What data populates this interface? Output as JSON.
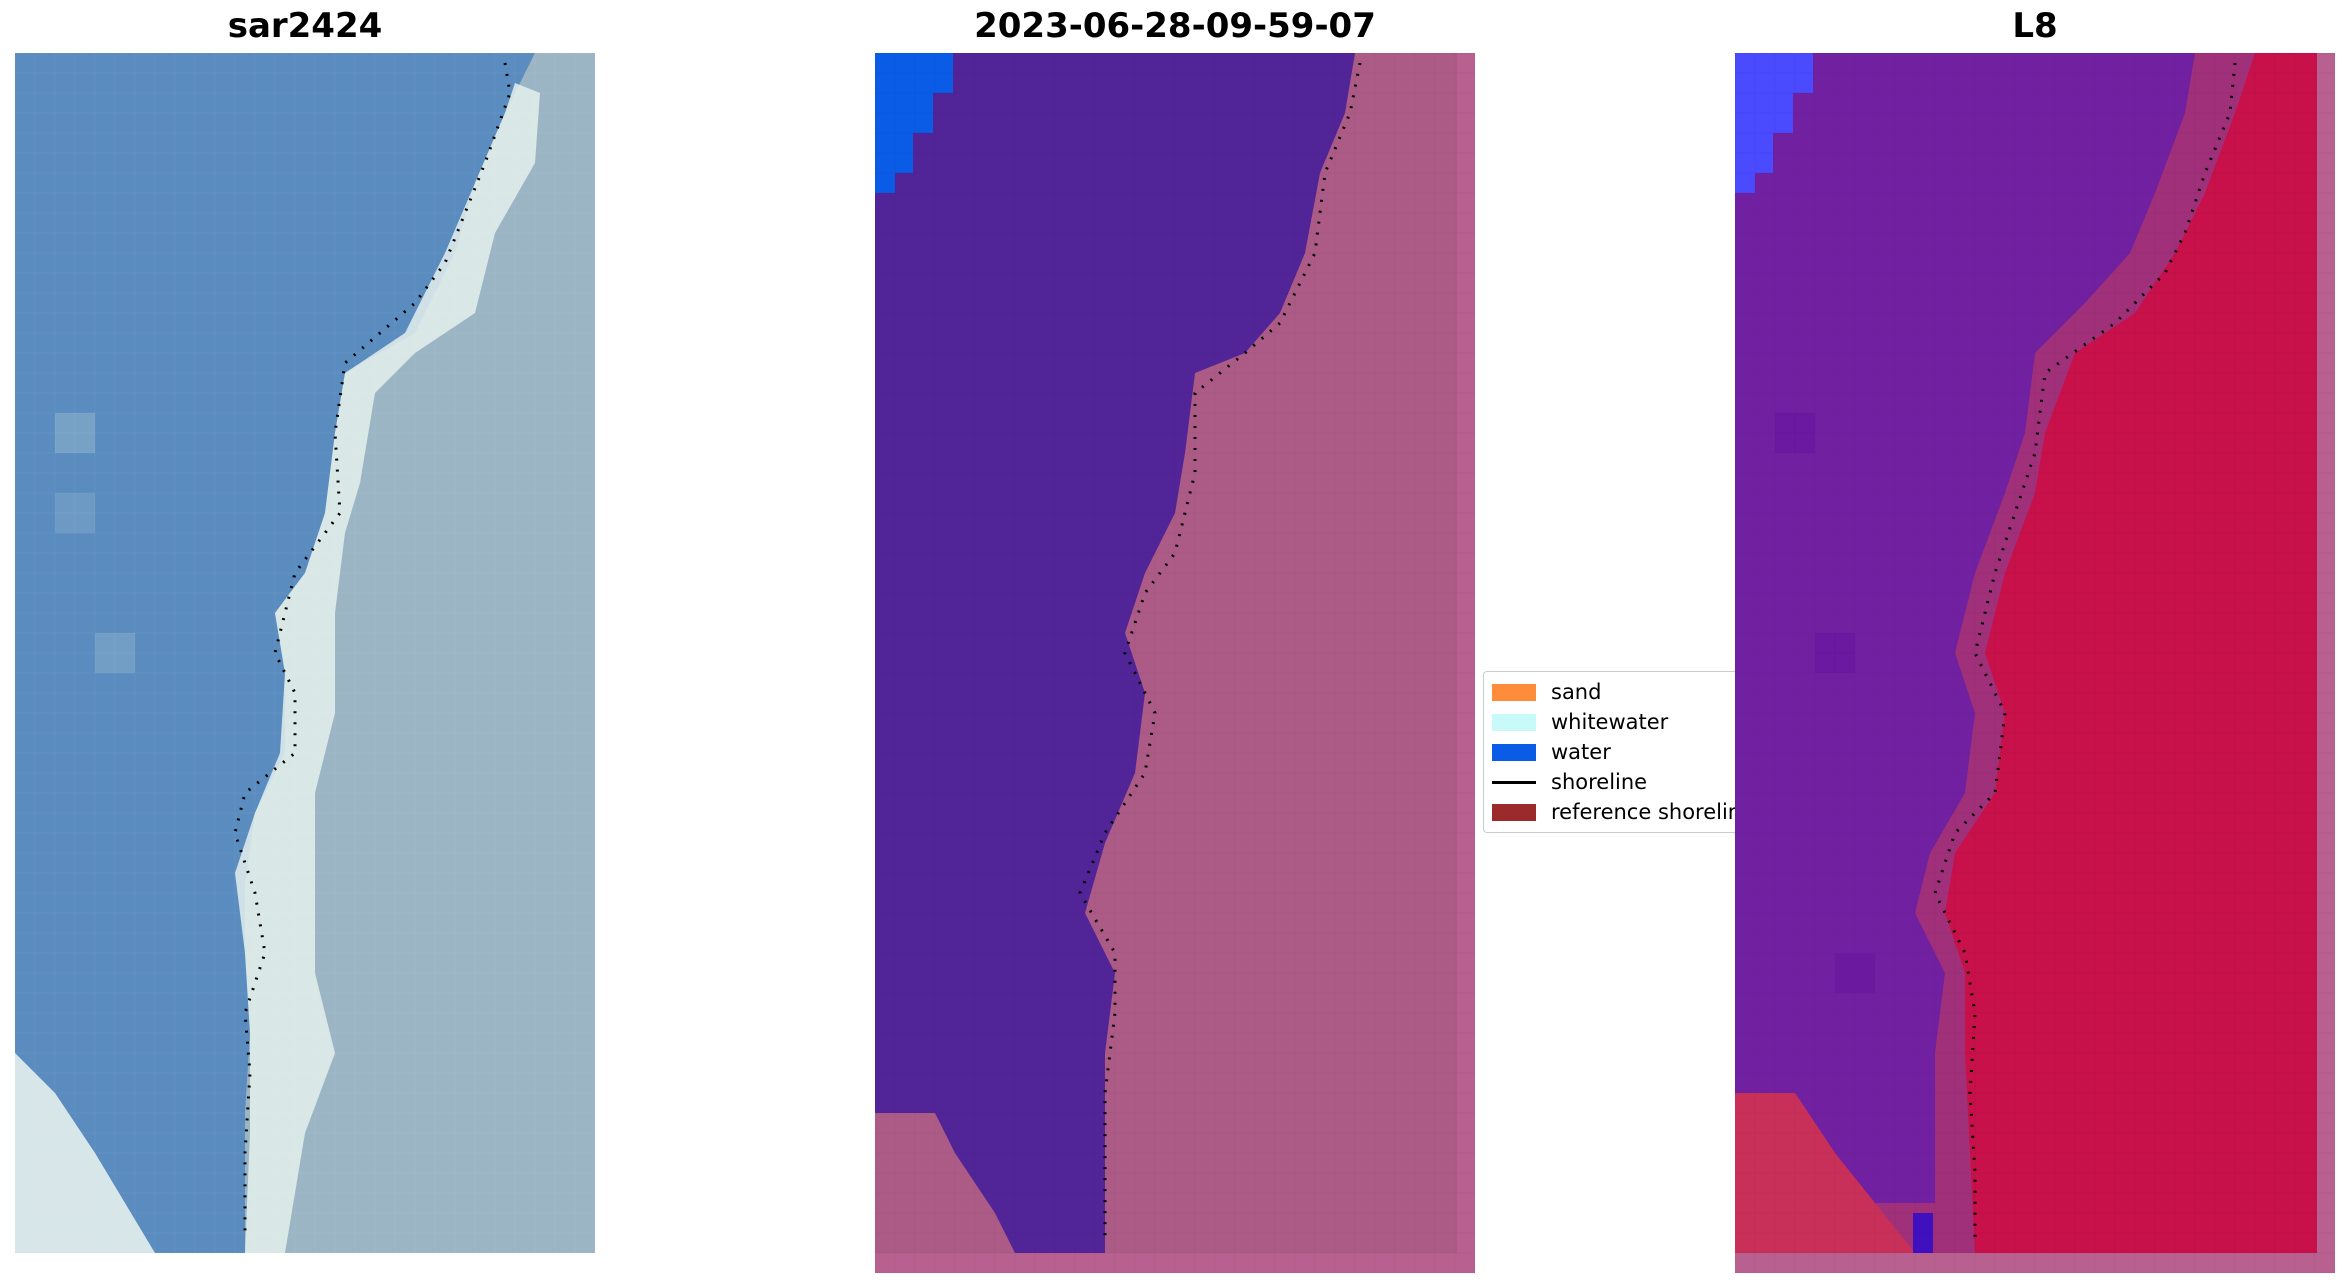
{
  "panels": {
    "rgb": {
      "title": "sar2424"
    },
    "classified": {
      "title": "2023-06-28-09-59-07"
    },
    "l8": {
      "title": "L8"
    }
  },
  "legend": {
    "items": [
      {
        "label": "sand",
        "kind": "patch",
        "color": "#ff8c3a"
      },
      {
        "label": "whitewater",
        "kind": "patch",
        "color": "#c8fafa"
      },
      {
        "label": "water",
        "kind": "patch",
        "color": "#0a5be6"
      },
      {
        "label": "shoreline",
        "kind": "line",
        "color": "#000000"
      },
      {
        "label": "reference shoreline",
        "kind": "patch",
        "color": "#9b2a2a"
      }
    ]
  },
  "colors": {
    "water_class": "#512497",
    "land_class": "#b8608f",
    "water_blue": "#0a5be6",
    "rgb_sea": "#5a8cbf",
    "rgb_surf": "#e4f0ec",
    "rgb_land": "#9bb5c4",
    "l8_sea": "#7020a0",
    "l8_land": "#c8104a",
    "l8_corner": "#4a4aff",
    "shoreline_dots": "#000000"
  }
}
